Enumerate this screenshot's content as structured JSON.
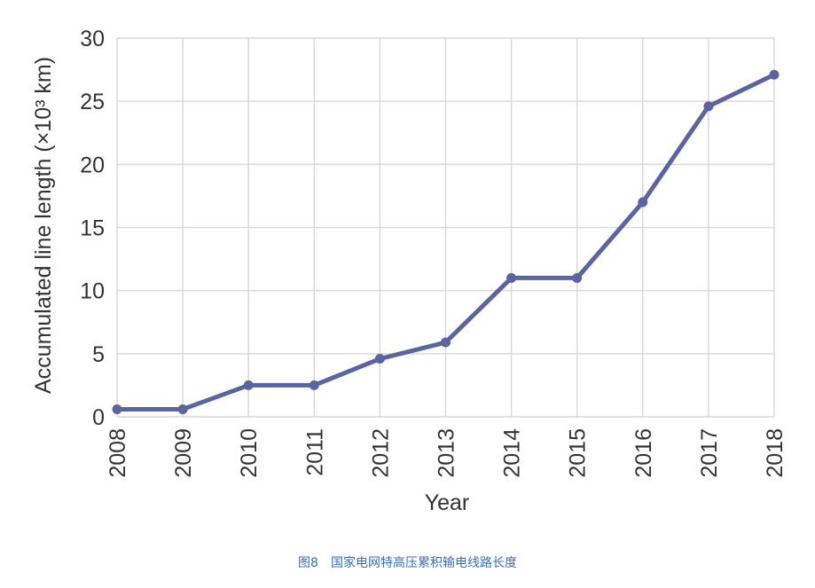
{
  "chart_data": {
    "type": "line",
    "xlabel": "Year",
    "ylabel": "Accumulated line length (×10³ km)",
    "categories": [
      "2008",
      "2009",
      "2010",
      "2011",
      "2012",
      "2013",
      "2014",
      "2015",
      "2016",
      "2017",
      "2018"
    ],
    "series": [
      {
        "values": [
          0.6,
          0.6,
          2.5,
          2.5,
          4.6,
          5.9,
          11.0,
          11.0,
          17.0,
          24.6,
          27.1
        ]
      }
    ],
    "ylim": [
      0,
      30
    ],
    "yticks": [
      0,
      5,
      10,
      15,
      20,
      25,
      30
    ],
    "grid": true,
    "line_color": "#5a64a0",
    "grid_color": "#d9d9d9"
  },
  "caption": "图8　国家电网特高压累积输电线路长度"
}
